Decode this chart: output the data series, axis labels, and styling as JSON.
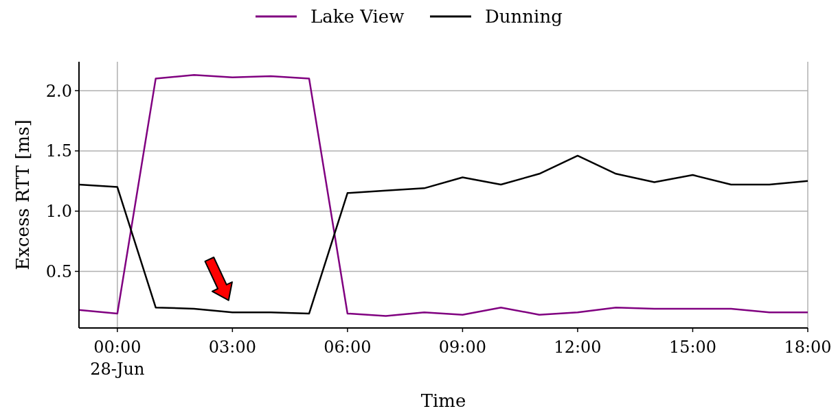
{
  "chart_data": {
    "type": "line",
    "xlabel": "Time",
    "ylabel": "Excess RTT [ms]",
    "x": [
      -1,
      0,
      1,
      2,
      3,
      4,
      5,
      6,
      7,
      8,
      9,
      10,
      11,
      12,
      13,
      14,
      15,
      16,
      17,
      18
    ],
    "series": [
      {
        "name": "Lake View",
        "color": "#800080",
        "values": [
          0.18,
          0.15,
          2.1,
          2.13,
          2.11,
          2.12,
          2.1,
          0.15,
          0.13,
          0.16,
          0.14,
          0.2,
          0.14,
          0.16,
          0.2,
          0.19,
          0.19,
          0.19,
          0.16,
          0.16
        ]
      },
      {
        "name": "Dunning",
        "color": "#000000",
        "values": [
          1.22,
          1.2,
          0.2,
          0.19,
          0.16,
          0.16,
          0.15,
          1.15,
          1.17,
          1.19,
          1.28,
          1.22,
          1.31,
          1.46,
          1.31,
          1.24,
          1.3,
          1.22,
          1.22,
          1.25
        ]
      }
    ],
    "xlim": [
      -1,
      18
    ],
    "xticks": [
      {
        "value": 0,
        "label": "00:00\n28-Jun"
      },
      {
        "value": 3,
        "label": "03:00"
      },
      {
        "value": 6,
        "label": "06:00"
      },
      {
        "value": 9,
        "label": "09:00"
      },
      {
        "value": 12,
        "label": "12:00"
      },
      {
        "value": 15,
        "label": "15:00"
      },
      {
        "value": 18,
        "label": "18:00"
      }
    ],
    "ylim": [
      0.03,
      2.24
    ],
    "yticks": [
      {
        "value": 0.5,
        "label": "0.5"
      },
      {
        "value": 1,
        "label": "1.0"
      },
      {
        "value": 1.5,
        "label": "1.5"
      },
      {
        "value": 2,
        "label": "2.0"
      }
    ],
    "ref_lines": [
      {
        "axis": "x",
        "value": 0,
        "color": "#b0b0b0"
      }
    ],
    "grid": "y",
    "legend": "top",
    "marker": "none",
    "line_style": "solid"
  }
}
